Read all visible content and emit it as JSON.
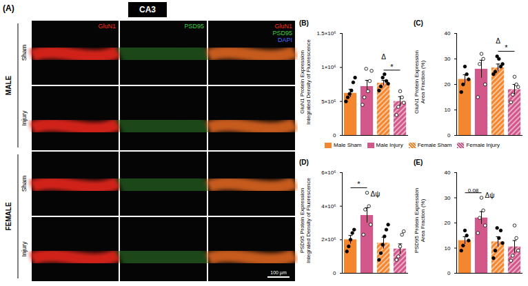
{
  "figure": {
    "panel_label": "(A)",
    "region": "CA3",
    "columns": [
      [
        {
          "text": "GluN1",
          "color": "#ff2a1a"
        }
      ],
      [
        {
          "text": "PSD95",
          "color": "#3fd23f"
        }
      ],
      [
        {
          "text": "GluN1",
          "color": "#ff2a1a"
        },
        {
          "text": "PSD95",
          "color": "#3fd23f"
        },
        {
          "text": "DAPI",
          "color": "#4a6cff"
        }
      ]
    ],
    "groups": [
      {
        "name": "MALE",
        "rows": [
          "Sham",
          "Injury"
        ]
      },
      {
        "name": "FEMALE",
        "rows": [
          "Sham",
          "Injury"
        ]
      }
    ],
    "scale_bar": "100 µm"
  },
  "legend": {
    "position": "center",
    "entries": [
      {
        "name": "Male Sham",
        "color": "#f4862f"
      },
      {
        "name": "Male Injury",
        "color": "#d2578a"
      },
      {
        "name": "Female Sham",
        "color": "#f4862f"
      },
      {
        "name": "Female Injury",
        "color": "#d2578a"
      }
    ]
  },
  "chart_data": [
    {
      "type": "bar",
      "panel": "(B)",
      "ylabel": [
        "GluN1 Protein Expression",
        "Integrated Density of Fluorescence"
      ],
      "categories": [
        "Male Sham",
        "Male Injury",
        "Female Sham",
        "Female Injury"
      ],
      "colors": [
        "#f4862f",
        "#d2578a",
        "#f4862f",
        "#d2578a"
      ],
      "values": [
        620000,
        720000,
        770000,
        500000
      ],
      "errors": [
        60000,
        90000,
        40000,
        70000
      ],
      "points": [
        [
          500000,
          560000,
          610000,
          660000,
          780000,
          850000
        ],
        [
          450000,
          560000,
          980000,
          650000,
          800000,
          950000
        ],
        [
          660000,
          720000,
          850000,
          900000,
          800000,
          760000
        ],
        [
          300000,
          420000,
          650000,
          560000,
          480000
        ]
      ],
      "ylim": [
        0,
        1500000
      ],
      "yticks": [
        0,
        {
          "value": 500000,
          "label": "5×10⁵"
        },
        {
          "value": 1000000,
          "label": "1×10⁶"
        },
        {
          "value": 1500000,
          "label": "1.5×10⁶"
        }
      ],
      "tick_labels": "y",
      "annotations": [
        {
          "text": "Δ",
          "at": [
            "Female Sham"
          ],
          "y": 1150000
        },
        {
          "text": "*",
          "bracket": [
            "Female Sham",
            "Female Injury"
          ],
          "y": 960000
        }
      ]
    },
    {
      "type": "bar",
      "panel": "(C)",
      "ylabel": [
        "GluN1 Protein Expression",
        "Area Fraction (%)"
      ],
      "categories": [
        "Male Sham",
        "Male Injury",
        "Female Sham",
        "Female Injury"
      ],
      "colors": [
        "#f4862f",
        "#d2578a",
        "#f4862f",
        "#d2578a"
      ],
      "values": [
        22,
        26,
        26.5,
        18
      ],
      "errors": [
        1.8,
        3.5,
        1.5,
        2
      ],
      "points": [
        [
          17,
          20,
          27,
          24,
          22
        ],
        [
          15,
          28,
          32,
          30,
          20
        ],
        [
          24,
          25,
          31,
          30,
          27,
          28
        ],
        [
          13,
          16,
          23,
          20,
          19
        ]
      ],
      "ylim": [
        0,
        40
      ],
      "yticks": [
        0,
        10,
        20,
        30,
        40
      ],
      "tick_labels": "y",
      "annotations": [
        {
          "text": "Δ",
          "at": [
            "Female Sham"
          ],
          "y": 37
        },
        {
          "text": "*",
          "bracket": [
            "Female Sham",
            "Female Injury"
          ],
          "y": 33
        }
      ]
    },
    {
      "type": "bar",
      "panel": "(D)",
      "ylabel": [
        "PSD95 Protein Expression",
        "Integrated Density of Fluorescence"
      ],
      "categories": [
        "Male Sham",
        "Male Injury",
        "Female Sham",
        "Female Injury"
      ],
      "colors": [
        "#f4862f",
        "#d2578a",
        "#f4862f",
        "#d2578a"
      ],
      "values": [
        2000000,
        3450000,
        1800000,
        1450000
      ],
      "errors": [
        250000,
        450000,
        350000,
        300000
      ],
      "points": [
        [
          1300000,
          1600000,
          2000000,
          2400000,
          2600000
        ],
        [
          2300000,
          3800000,
          4800000,
          4000000,
          2900000
        ],
        [
          800000,
          1200000,
          1700000,
          2200000,
          2600000,
          2900000
        ],
        [
          800000,
          1000000,
          1600000,
          2300000,
          2500000
        ]
      ],
      "ylim": [
        0,
        6000000
      ],
      "yticks": [
        0,
        {
          "value": 2000000,
          "label": "2×10⁶"
        },
        {
          "value": 4000000,
          "label": "4×10⁶"
        },
        {
          "value": 6000000,
          "label": "6×10⁶"
        }
      ],
      "tick_labels": "y",
      "annotations": [
        {
          "text": "*",
          "bracket": [
            "Male Sham",
            "Male Injury"
          ],
          "y": 5100000
        },
        {
          "text": "Δψ",
          "at": [
            "Male Injury",
            "Female Sham"
          ],
          "y": 4700000
        }
      ]
    },
    {
      "type": "bar",
      "panel": "(E)",
      "ylabel": [
        "PSD95 Protein Expression",
        "Area Fraction (%)"
      ],
      "categories": [
        "Male Sham",
        "Male Injury",
        "Female Sham",
        "Female Injury"
      ],
      "colors": [
        "#f4862f",
        "#d2578a",
        "#f4862f",
        "#d2578a"
      ],
      "values": [
        13,
        22,
        12.5,
        10.5
      ],
      "errors": [
        1.5,
        2.5,
        2,
        2.5
      ],
      "points": [
        [
          9,
          11,
          17,
          15,
          13
        ],
        [
          16,
          22,
          30,
          25,
          19
        ],
        [
          6,
          9,
          18,
          14,
          17,
          12
        ],
        [
          5,
          7,
          19,
          14,
          9
        ]
      ],
      "ylim": [
        0,
        40
      ],
      "yticks": [
        0,
        10,
        20,
        30,
        40
      ],
      "tick_labels": "y",
      "annotations": [
        {
          "text": "0.08",
          "bracket": [
            "Male Sham",
            "Male Injury"
          ],
          "y": 32
        },
        {
          "text": "Δψ",
          "at": [
            "Male Injury",
            "Female Sham"
          ],
          "y": 31
        }
      ]
    }
  ]
}
